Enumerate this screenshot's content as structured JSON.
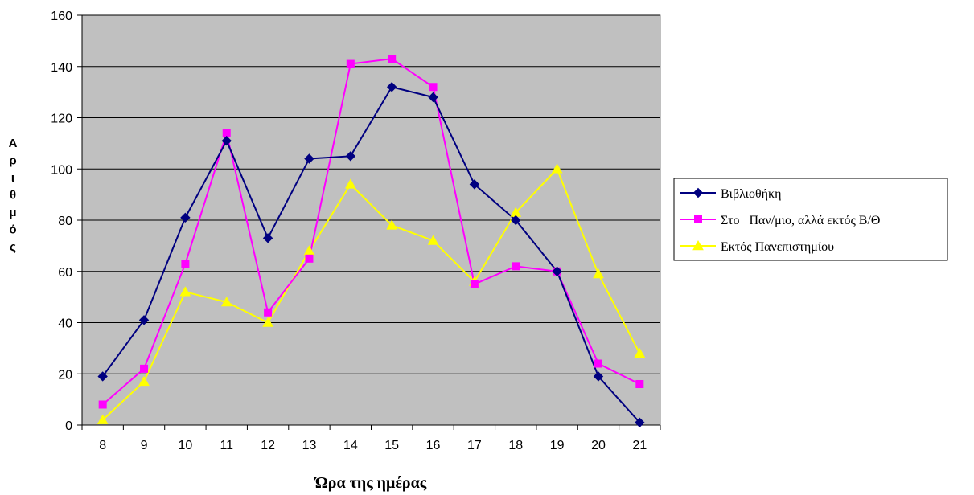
{
  "chart_data": {
    "type": "line",
    "title": "",
    "xlabel": "Ώρα της ημέρας",
    "ylabel": "Αριθμός",
    "ylabel_chars": [
      "Α",
      "ρ",
      "ι",
      "θ",
      "μ",
      "ό",
      "ς"
    ],
    "categories": [
      "8",
      "9",
      "10",
      "11",
      "12",
      "13",
      "14",
      "15",
      "16",
      "17",
      "18",
      "19",
      "20",
      "21"
    ],
    "ylim": [
      0,
      160
    ],
    "yticks": [
      "0",
      "20",
      "40",
      "60",
      "80",
      "100",
      "120",
      "140",
      "160"
    ],
    "grid": true,
    "legend_position": "right",
    "plot_background": "#c0c0c0",
    "series": [
      {
        "name": "Βιβλιοθήκη",
        "color": "#000080",
        "marker": "diamond",
        "values": [
          19,
          41,
          81,
          111,
          73,
          104,
          105,
          132,
          128,
          94,
          80,
          60,
          19,
          1
        ]
      },
      {
        "name": "Στο   Παν/μιο, αλλά εκτός Β/Θ",
        "color": "#ff00ff",
        "marker": "square",
        "values": [
          8,
          22,
          63,
          114,
          44,
          65,
          141,
          143,
          132,
          55,
          62,
          60,
          24,
          16
        ]
      },
      {
        "name": "Εκτός Πανεπιστημίου",
        "color": "#ffff00",
        "marker": "triangle",
        "values": [
          2,
          17,
          52,
          48,
          40,
          68,
          94,
          78,
          72,
          56,
          83,
          100,
          59,
          28
        ]
      }
    ]
  }
}
